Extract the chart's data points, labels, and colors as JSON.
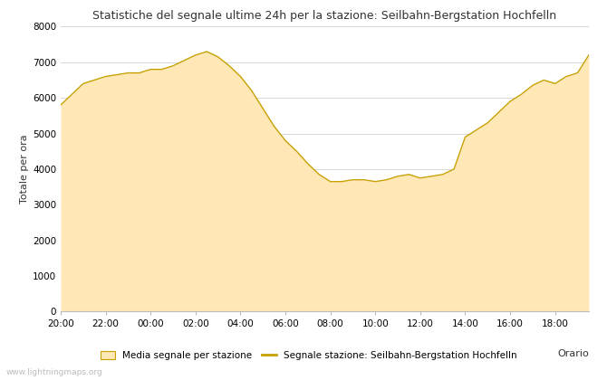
{
  "title": "Statistiche del segnale ultime 24h per la stazione: Seilbahn-Bergstation Hochfelln",
  "xlabel": "Orario",
  "ylabel": "Totale per ora",
  "x_tick_labels": [
    "20:00",
    "22:00",
    "00:00",
    "02:00",
    "04:00",
    "06:00",
    "08:00",
    "10:00",
    "12:00",
    "14:00",
    "16:00",
    "18:00"
  ],
  "x_tick_pos": [
    0,
    2,
    4,
    6,
    8,
    10,
    12,
    14,
    16,
    18,
    20,
    22
  ],
  "xlim": [
    0,
    23.5
  ],
  "ylim": [
    0,
    8000
  ],
  "yticks": [
    0,
    1000,
    2000,
    3000,
    4000,
    5000,
    6000,
    7000,
    8000
  ],
  "fill_color": "#FFE8B5",
  "line_color": "#C8A000",
  "background_color": "#ffffff",
  "grid_color": "#d0d0d0",
  "watermark": "www.lightningmaps.org",
  "legend_fill_label": "Media segnale per stazione",
  "legend_line_label": "Segnale stazione: Seilbahn-Bergstation Hochfelln",
  "hours": [
    0.0,
    0.5,
    1.0,
    1.5,
    2.0,
    2.5,
    3.0,
    3.5,
    4.0,
    4.5,
    5.0,
    5.5,
    6.0,
    6.5,
    7.0,
    7.5,
    8.0,
    8.5,
    9.0,
    9.5,
    10.0,
    10.5,
    11.0,
    11.5,
    12.0,
    12.5,
    13.0,
    13.5,
    14.0,
    14.5,
    15.0,
    15.5,
    16.0,
    16.5,
    17.0,
    17.5,
    18.0,
    18.5,
    19.0,
    19.5,
    20.0,
    20.5,
    21.0,
    21.5,
    22.0,
    22.5,
    23.0,
    23.5
  ],
  "values": [
    5800,
    6100,
    6400,
    6500,
    6600,
    6650,
    6700,
    6700,
    6800,
    6800,
    6900,
    7050,
    7200,
    7300,
    7150,
    6900,
    6600,
    6200,
    5700,
    5200,
    4800,
    4500,
    4150,
    3850,
    3650,
    3650,
    3700,
    3700,
    3650,
    3700,
    3800,
    3850,
    3750,
    3800,
    3850,
    4000,
    4900,
    5100,
    5300,
    5600,
    5900,
    6100,
    6350,
    6500,
    6400,
    6600,
    6700,
    7200
  ]
}
